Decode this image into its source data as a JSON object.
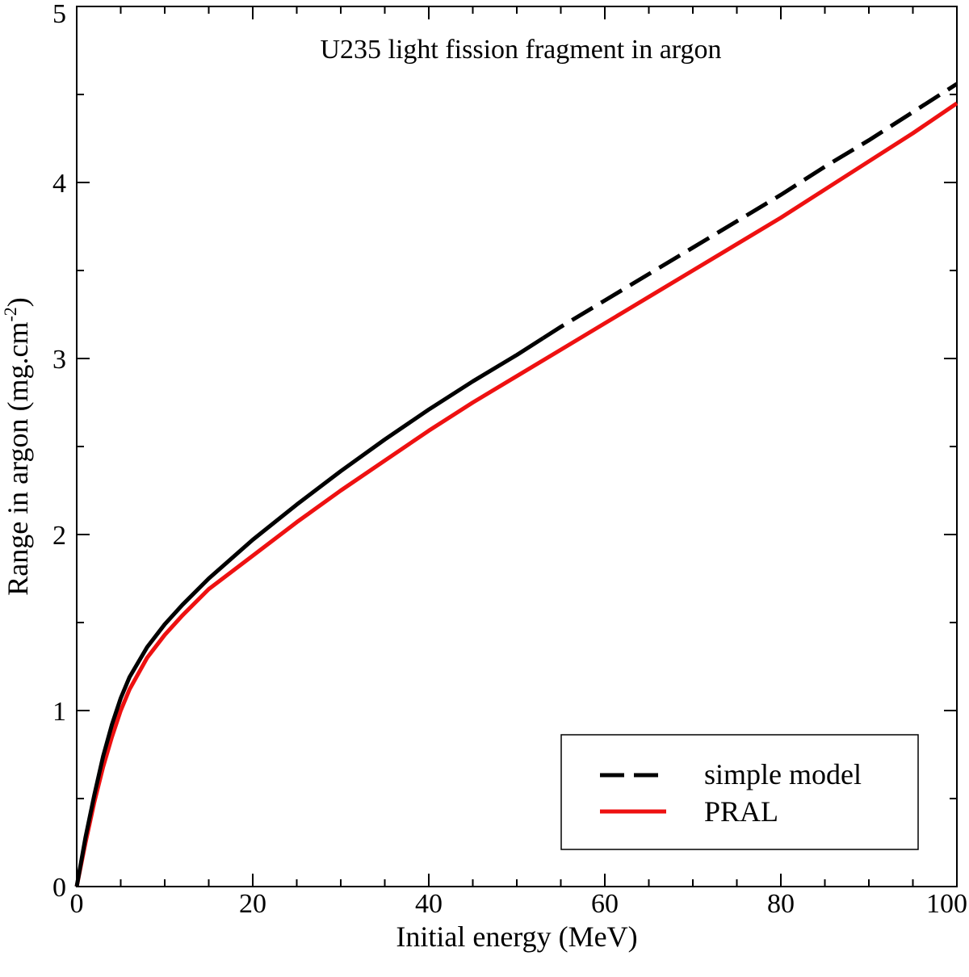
{
  "chart_data": {
    "type": "line",
    "title": "U235 light fission fragment in argon",
    "xlabel": "Initial energy (MeV)",
    "ylabel_main": "Range in argon (mg.cm",
    "ylabel_sup": "-2",
    "ylabel_end": ")",
    "xlim": [
      0,
      100
    ],
    "ylim": [
      0,
      5
    ],
    "x_ticks": [
      "0",
      "20",
      "40",
      "60",
      "80",
      "100"
    ],
    "y_ticks": [
      "0",
      "1",
      "2",
      "3",
      "4",
      "5"
    ],
    "grid": false,
    "legend_position": "bottom-right",
    "series": [
      {
        "name": "simple model",
        "color": "#000000",
        "style": "solid-then-dashed",
        "dash_from_x": 53,
        "x": [
          0,
          1,
          2,
          3,
          4,
          5,
          6,
          8,
          10,
          12,
          15,
          20,
          25,
          30,
          35,
          40,
          45,
          50,
          55,
          60,
          65,
          70,
          75,
          80,
          85,
          90,
          95,
          100
        ],
        "y": [
          0,
          0.28,
          0.52,
          0.74,
          0.92,
          1.07,
          1.19,
          1.36,
          1.49,
          1.6,
          1.75,
          1.97,
          2.17,
          2.36,
          2.54,
          2.71,
          2.87,
          3.02,
          3.18,
          3.33,
          3.48,
          3.63,
          3.78,
          3.93,
          4.09,
          4.24,
          4.4,
          4.56
        ]
      },
      {
        "name": "PRAL",
        "color": "#ee1111",
        "style": "solid",
        "x": [
          0,
          1,
          2,
          3,
          4,
          5,
          6,
          8,
          10,
          12,
          15,
          20,
          25,
          30,
          35,
          40,
          45,
          50,
          55,
          60,
          65,
          70,
          75,
          80,
          85,
          90,
          95,
          100
        ],
        "y": [
          0,
          0.25,
          0.48,
          0.68,
          0.85,
          1.0,
          1.12,
          1.3,
          1.43,
          1.54,
          1.69,
          1.88,
          2.07,
          2.25,
          2.42,
          2.59,
          2.75,
          2.9,
          3.05,
          3.2,
          3.35,
          3.5,
          3.65,
          3.8,
          3.96,
          4.12,
          4.28,
          4.45
        ]
      }
    ]
  }
}
